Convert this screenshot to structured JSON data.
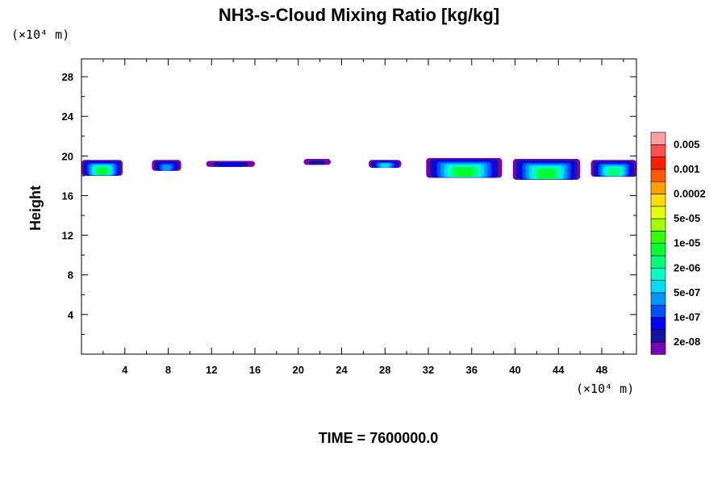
{
  "chart_data": {
    "type": "heatmap",
    "title": "NH3-s-Cloud Mixing Ratio [kg/kg]",
    "ylabel": "Height",
    "x_unit": "(×10⁴ m)",
    "y_unit": "(×10⁴ m)",
    "footer": "TIME = 7600000.0",
    "xlim": [
      0,
      51.2
    ],
    "ylim": [
      0,
      29.8
    ],
    "xticks": [
      4,
      8,
      12,
      16,
      20,
      24,
      28,
      32,
      36,
      40,
      44,
      48
    ],
    "yticks": [
      4,
      8,
      12,
      16,
      20,
      24,
      28
    ],
    "colorbar": {
      "colors": [
        "#7a00b5",
        "#1414a0",
        "#0000ff",
        "#0050ff",
        "#0096ff",
        "#00dcff",
        "#00ffc8",
        "#00ff78",
        "#00ff32",
        "#32ff00",
        "#a0ff00",
        "#e6ff00",
        "#ffdc00",
        "#ffa000",
        "#ff5a00",
        "#ff1e00",
        "#ff5050",
        "#ffa0a0"
      ],
      "labels": [
        "2e-08",
        "1e-07",
        "5e-07",
        "2e-06",
        "1e-05",
        "5e-05",
        "0.0002",
        "0.001",
        "0.005"
      ]
    },
    "cloud_regions": [
      {
        "x": [
          0.0,
          3.8
        ],
        "y": [
          18.0,
          19.6
        ],
        "max_level": 8
      },
      {
        "x": [
          6.5,
          9.2
        ],
        "y": [
          18.5,
          19.6
        ],
        "max_level": 4
      },
      {
        "x": [
          11.5,
          16.0
        ],
        "y": [
          18.9,
          19.5
        ],
        "max_level": 2
      },
      {
        "x": [
          20.5,
          23.0
        ],
        "y": [
          19.1,
          19.7
        ],
        "max_level": 1
      },
      {
        "x": [
          26.5,
          29.5
        ],
        "y": [
          18.8,
          19.6
        ],
        "max_level": 5
      },
      {
        "x": [
          31.8,
          38.8
        ],
        "y": [
          17.8,
          19.8
        ],
        "max_level": 8
      },
      {
        "x": [
          39.8,
          46.0
        ],
        "y": [
          17.6,
          19.7
        ],
        "max_level": 8
      },
      {
        "x": [
          47.0,
          51.2
        ],
        "y": [
          17.9,
          19.6
        ],
        "max_level": 7
      }
    ]
  }
}
